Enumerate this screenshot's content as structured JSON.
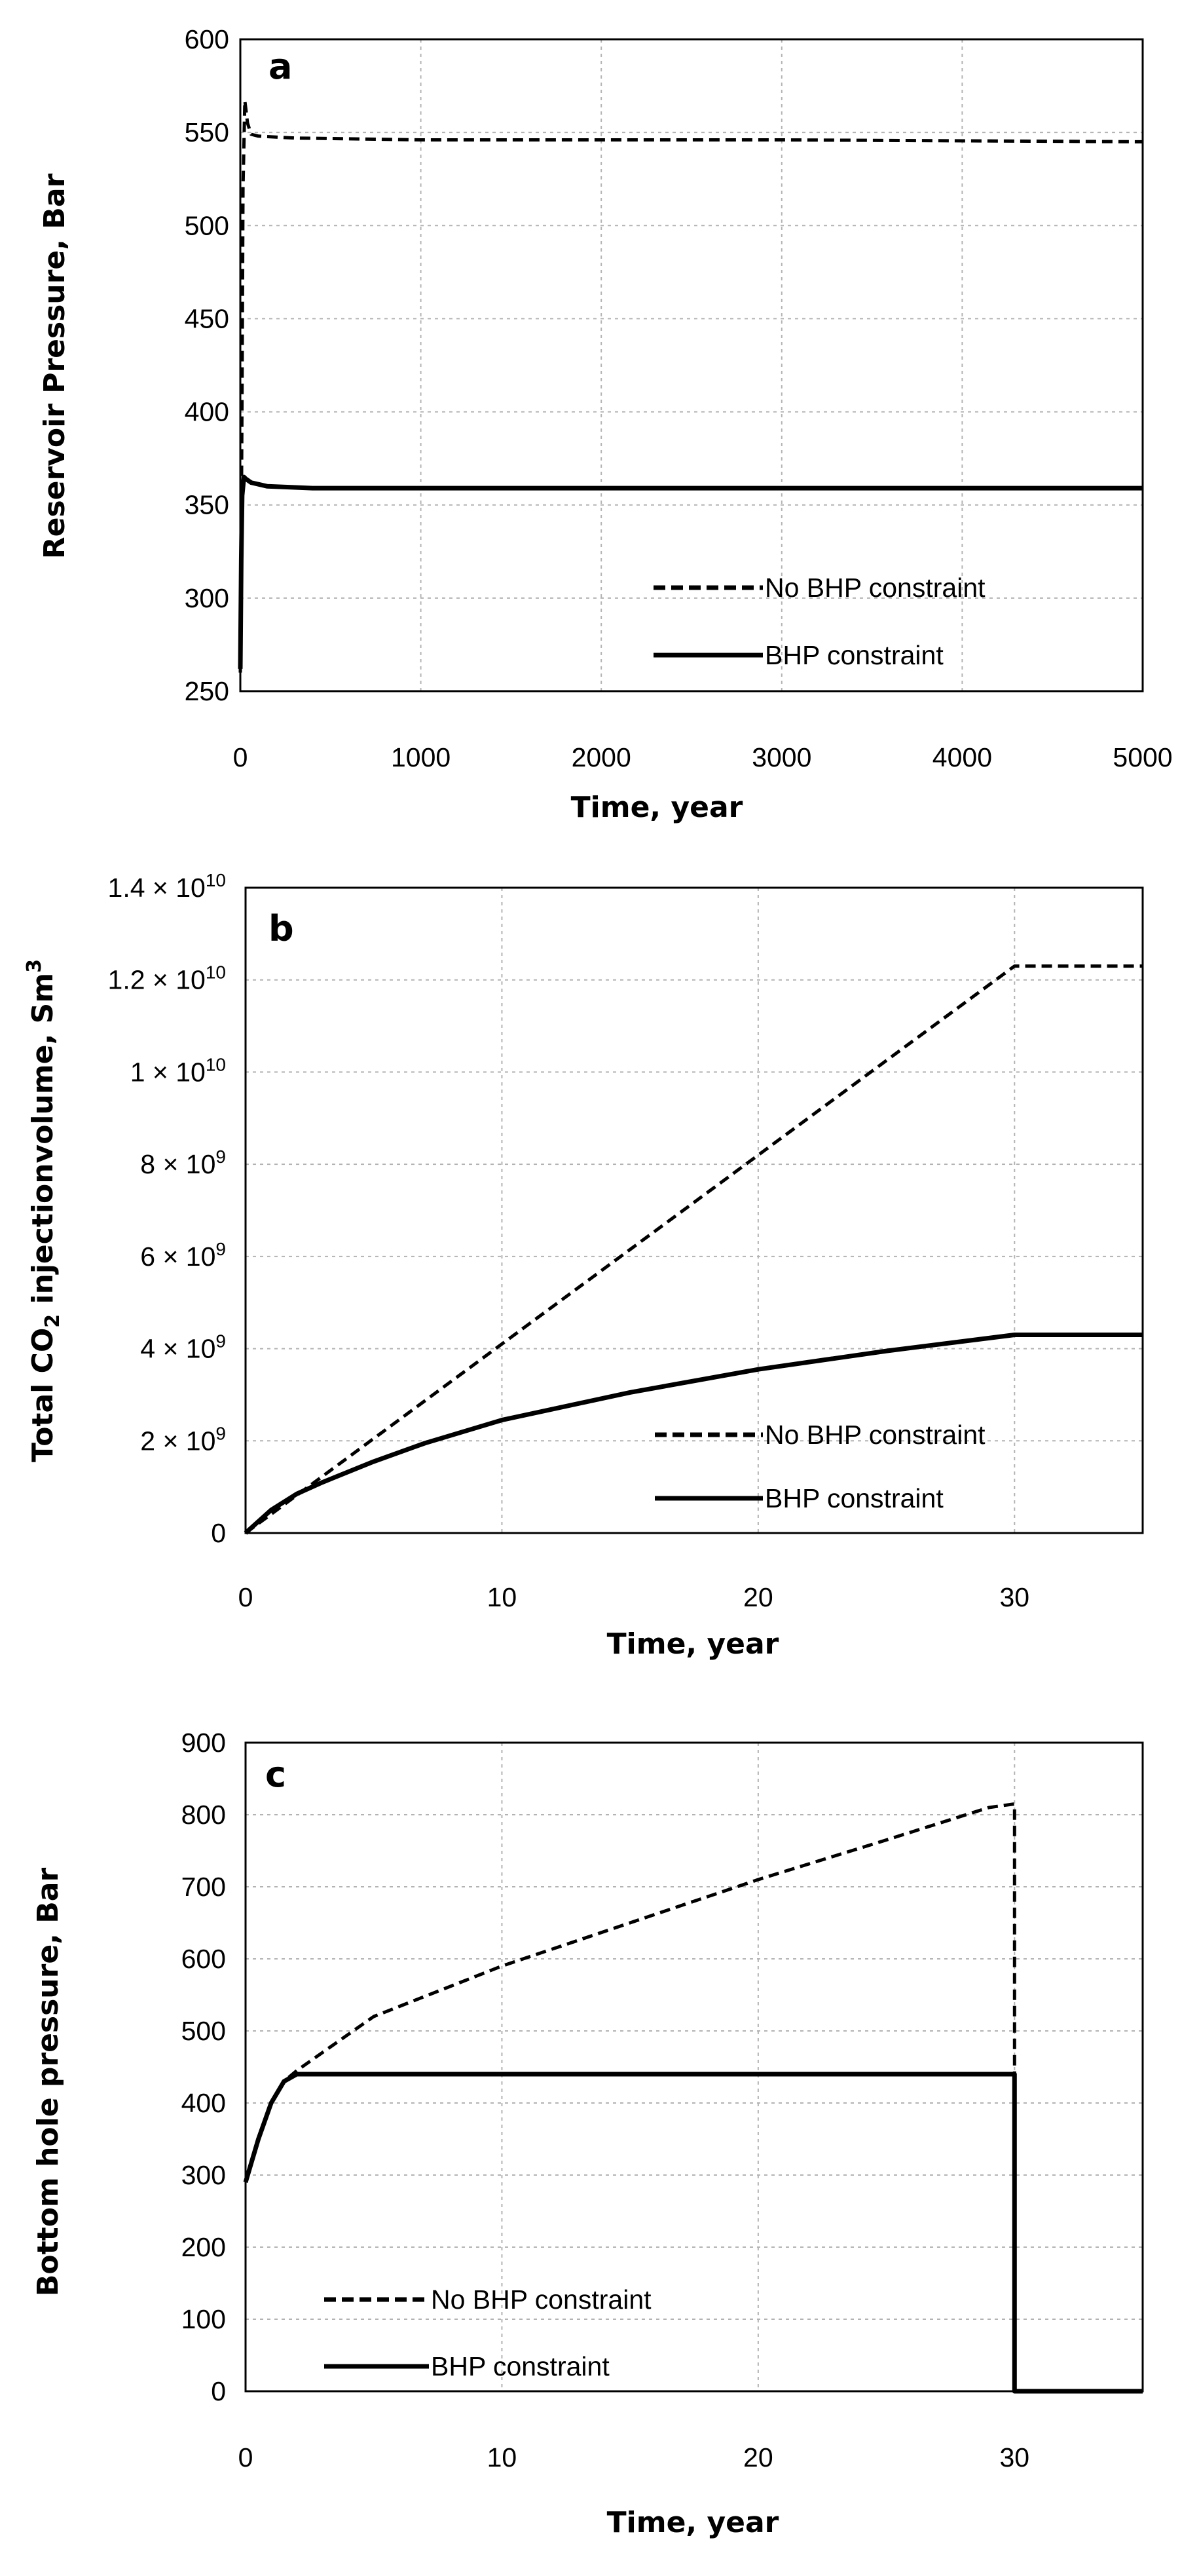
{
  "colors": {
    "line": "#000000",
    "grid": "#b3b3b3",
    "background": "#ffffff"
  },
  "chart_data": [
    {
      "type": "line",
      "panel": "a",
      "title": "",
      "xlabel": "Time, year",
      "ylabel": "Reservoir Pressure, Bar",
      "xlim": [
        0,
        5000
      ],
      "ylim": [
        250,
        600
      ],
      "xticks": [
        0,
        1000,
        2000,
        3000,
        4000,
        5000
      ],
      "yticks": [
        250,
        300,
        350,
        400,
        450,
        500,
        550,
        600
      ],
      "xtick_labels": [
        "0",
        "1000",
        "2000",
        "3000",
        "4000",
        "5000"
      ],
      "ytick_labels": [
        "250",
        "300",
        "350",
        "400",
        "450",
        "500",
        "550",
        "600"
      ],
      "grid": true,
      "legend_position": "lower-right",
      "series": [
        {
          "name": "No BHP constraint",
          "style": "dashed",
          "x": [
            0,
            5,
            10,
            15,
            25,
            40,
            60,
            100,
            300,
            1000,
            3000,
            5000
          ],
          "y": [
            260,
            330,
            420,
            520,
            567,
            555,
            549,
            548,
            547,
            546,
            546,
            545
          ]
        },
        {
          "name": "BHP constraint",
          "style": "solid",
          "x": [
            0,
            5,
            10,
            20,
            30,
            60,
            150,
            400,
            1000,
            3000,
            5000
          ],
          "y": [
            262,
            320,
            355,
            365,
            364,
            362,
            360,
            359,
            359,
            359,
            359
          ]
        }
      ]
    },
    {
      "type": "line",
      "panel": "b",
      "title": "",
      "xlabel": "Time, year",
      "ylabel": "Total CO₂ injection volume, Sm³",
      "ylabel_parts": [
        "Total CO",
        "2",
        " injectionvolume, Sm",
        "3"
      ],
      "xlim": [
        0,
        35
      ],
      "ylim": [
        0,
        14000000000
      ],
      "xticks": [
        0,
        10,
        20,
        30
      ],
      "yticks": [
        0,
        2000000000,
        4000000000,
        6000000000,
        8000000000,
        10000000000,
        12000000000,
        14000000000
      ],
      "xtick_labels": [
        "0",
        "10",
        "20",
        "30"
      ],
      "ytick_labels": [
        {
          "mantissa": "",
          "exp": "",
          "plain": "0"
        },
        {
          "mantissa": "2 × 10",
          "exp": "9",
          "plain": ""
        },
        {
          "mantissa": "4 × 10",
          "exp": "9",
          "plain": ""
        },
        {
          "mantissa": "6 × 10",
          "exp": "9",
          "plain": ""
        },
        {
          "mantissa": "8 × 10",
          "exp": "9",
          "plain": ""
        },
        {
          "mantissa": "1 × 10",
          "exp": "10",
          "plain": ""
        },
        {
          "mantissa": "1.2 × 10",
          "exp": "10",
          "plain": ""
        },
        {
          "mantissa": "1.4 × 10",
          "exp": "10",
          "plain": ""
        }
      ],
      "grid": true,
      "legend_position": "lower-right",
      "series": [
        {
          "name": "No BHP constraint",
          "style": "dashed",
          "x": [
            0,
            1,
            2,
            3,
            5,
            10,
            15,
            20,
            25,
            30,
            35
          ],
          "y": [
            0,
            410000000,
            820000000,
            1230000000,
            2050000000,
            4100000000,
            6150000000,
            8200000000,
            10250000000,
            12300000000,
            12300000000
          ]
        },
        {
          "name": "BHP constraint",
          "style": "solid",
          "x": [
            0,
            1,
            2,
            3,
            5,
            7,
            10,
            15,
            20,
            25,
            30,
            35
          ],
          "y": [
            0,
            500000000,
            850000000,
            1100000000,
            1550000000,
            1950000000,
            2450000000,
            3050000000,
            3550000000,
            3950000000,
            4300000000,
            4300000000
          ]
        }
      ]
    },
    {
      "type": "line",
      "panel": "c",
      "title": "",
      "xlabel": "Time, year",
      "ylabel": "Bottom hole pressure, Bar",
      "xlim": [
        0,
        35
      ],
      "ylim": [
        0,
        900
      ],
      "xticks": [
        0,
        10,
        20,
        30
      ],
      "yticks": [
        0,
        100,
        200,
        300,
        400,
        500,
        600,
        700,
        800,
        900
      ],
      "xtick_labels": [
        "0",
        "10",
        "20",
        "30"
      ],
      "ytick_labels": [
        "0",
        "100",
        "200",
        "300",
        "400",
        "500",
        "600",
        "700",
        "800",
        "900"
      ],
      "grid": true,
      "legend_position": "lower-left",
      "series": [
        {
          "name": "No BHP constraint",
          "style": "dashed",
          "x": [
            0,
            0.5,
            1,
            1.5,
            2,
            3,
            5,
            10,
            15,
            20,
            25,
            29,
            30,
            30
          ],
          "y": [
            290,
            350,
            400,
            430,
            445,
            470,
            520,
            590,
            650,
            710,
            765,
            810,
            815,
            0
          ]
        },
        {
          "name": "BHP constraint",
          "style": "solid",
          "x": [
            0,
            0.5,
            1,
            1.5,
            2,
            30,
            30,
            35
          ],
          "y": [
            290,
            350,
            400,
            430,
            440,
            440,
            0,
            0
          ]
        }
      ]
    }
  ]
}
